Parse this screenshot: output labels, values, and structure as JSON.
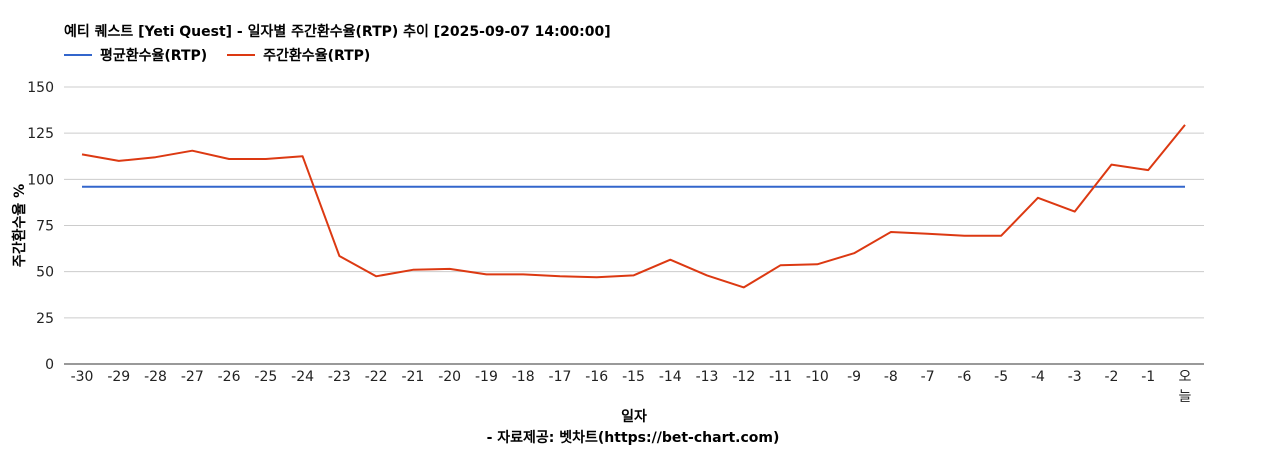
{
  "chart_data": {
    "type": "line",
    "title": "예티 퀘스트 [Yeti Quest] - 일자별 주간환수율(RTP) 추이 [2025-09-07 14:00:00]",
    "xlabel": "일자",
    "ylabel": "주간환수율 %",
    "source": "- 자료제공: 벳차트(https://bet-chart.com)",
    "categories": [
      "-30",
      "-29",
      "-28",
      "-27",
      "-26",
      "-25",
      "-24",
      "-23",
      "-22",
      "-21",
      "-20",
      "-19",
      "-18",
      "-17",
      "-16",
      "-15",
      "-14",
      "-13",
      "-12",
      "-11",
      "-10",
      "-9",
      "-8",
      "-7",
      "-6",
      "-5",
      "-4",
      "-3",
      "-2",
      "-1",
      "오늘"
    ],
    "ylim": [
      0,
      150
    ],
    "yticks": [
      0,
      25,
      50,
      75,
      100,
      125,
      150
    ],
    "grid": true,
    "legend_position": "top-left",
    "series": [
      {
        "name": "평균환수율(RTP)",
        "color": "#3366cc",
        "values": [
          96,
          96,
          96,
          96,
          96,
          96,
          96,
          96,
          96,
          96,
          96,
          96,
          96,
          96,
          96,
          96,
          96,
          96,
          96,
          96,
          96,
          96,
          96,
          96,
          96,
          96,
          96,
          96,
          96,
          96,
          96
        ]
      },
      {
        "name": "주간환수율(RTP)",
        "color": "#dc3912",
        "values": [
          113.5,
          110,
          112,
          115.5,
          111,
          111,
          112.5,
          58.5,
          47.5,
          51,
          51.5,
          48.5,
          48.5,
          47.5,
          47,
          48,
          56.5,
          48,
          41.5,
          53.5,
          54,
          60,
          71.5,
          70.5,
          69.5,
          69.5,
          90,
          82.5,
          108,
          105,
          129.5
        ]
      }
    ]
  }
}
